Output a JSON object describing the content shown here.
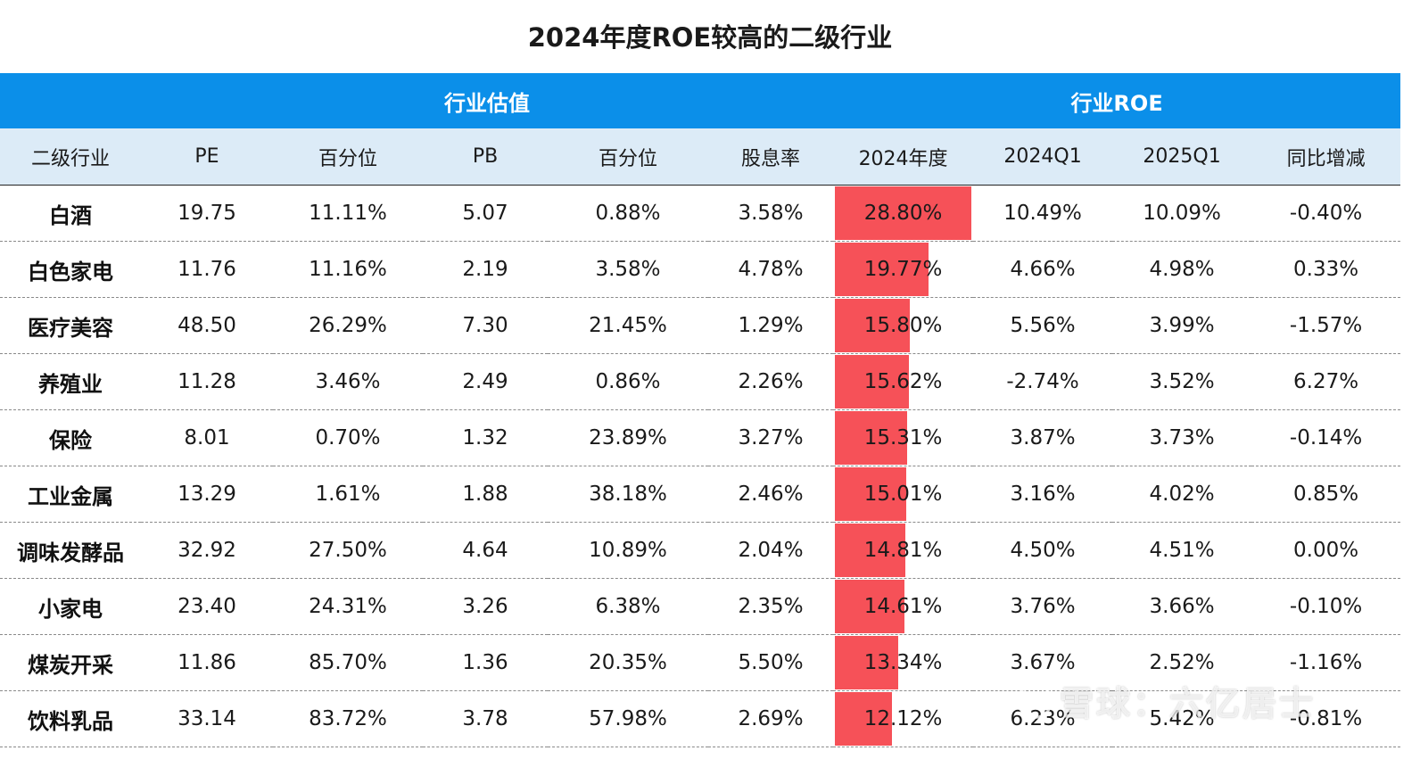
{
  "title": "2024年度ROE较高的二级行业",
  "group_headers": {
    "blank": "",
    "valuation": "行业估值",
    "roe": "行业ROE"
  },
  "columns": [
    "二级行业",
    "PE",
    "百分位",
    "PB",
    "百分位",
    "股息率",
    "2024年度",
    "2024Q1",
    "2025Q1",
    "同比增减"
  ],
  "rows": [
    {
      "industry": "白酒",
      "pe": "19.75",
      "pe_pct": "11.11%",
      "pb": "5.07",
      "pb_pct": "0.88%",
      "dividend": "3.58%",
      "roe_2024": "28.80%",
      "roe_2024_value": 28.8,
      "q1_2024": "10.49%",
      "q1_2025": "10.09%",
      "yoy": "-0.40%"
    },
    {
      "industry": "白色家电",
      "pe": "11.76",
      "pe_pct": "11.16%",
      "pb": "2.19",
      "pb_pct": "3.58%",
      "dividend": "4.78%",
      "roe_2024": "19.77%",
      "roe_2024_value": 19.77,
      "q1_2024": "4.66%",
      "q1_2025": "4.98%",
      "yoy": "0.33%"
    },
    {
      "industry": "医疗美容",
      "pe": "48.50",
      "pe_pct": "26.29%",
      "pb": "7.30",
      "pb_pct": "21.45%",
      "dividend": "1.29%",
      "roe_2024": "15.80%",
      "roe_2024_value": 15.8,
      "q1_2024": "5.56%",
      "q1_2025": "3.99%",
      "yoy": "-1.57%"
    },
    {
      "industry": "养殖业",
      "pe": "11.28",
      "pe_pct": "3.46%",
      "pb": "2.49",
      "pb_pct": "0.86%",
      "dividend": "2.26%",
      "roe_2024": "15.62%",
      "roe_2024_value": 15.62,
      "q1_2024": "-2.74%",
      "q1_2025": "3.52%",
      "yoy": "6.27%"
    },
    {
      "industry": "保险",
      "pe": "8.01",
      "pe_pct": "0.70%",
      "pb": "1.32",
      "pb_pct": "23.89%",
      "dividend": "3.27%",
      "roe_2024": "15.31%",
      "roe_2024_value": 15.31,
      "q1_2024": "3.87%",
      "q1_2025": "3.73%",
      "yoy": "-0.14%"
    },
    {
      "industry": "工业金属",
      "pe": "13.29",
      "pe_pct": "1.61%",
      "pb": "1.88",
      "pb_pct": "38.18%",
      "dividend": "2.46%",
      "roe_2024": "15.01%",
      "roe_2024_value": 15.01,
      "q1_2024": "3.16%",
      "q1_2025": "4.02%",
      "yoy": "0.85%"
    },
    {
      "industry": "调味发酵品",
      "pe": "32.92",
      "pe_pct": "27.50%",
      "pb": "4.64",
      "pb_pct": "10.89%",
      "dividend": "2.04%",
      "roe_2024": "14.81%",
      "roe_2024_value": 14.81,
      "q1_2024": "4.50%",
      "q1_2025": "4.51%",
      "yoy": "0.00%"
    },
    {
      "industry": "小家电",
      "pe": "23.40",
      "pe_pct": "24.31%",
      "pb": "3.26",
      "pb_pct": "6.38%",
      "dividend": "2.35%",
      "roe_2024": "14.61%",
      "roe_2024_value": 14.61,
      "q1_2024": "3.76%",
      "q1_2025": "3.66%",
      "yoy": "-0.10%"
    },
    {
      "industry": "煤炭开采",
      "pe": "11.86",
      "pe_pct": "85.70%",
      "pb": "1.36",
      "pb_pct": "20.35%",
      "dividend": "5.50%",
      "roe_2024": "13.34%",
      "roe_2024_value": 13.34,
      "q1_2024": "3.67%",
      "q1_2025": "2.52%",
      "yoy": "-1.16%"
    },
    {
      "industry": "饮料乳品",
      "pe": "33.14",
      "pe_pct": "83.72%",
      "pb": "3.78",
      "pb_pct": "57.98%",
      "dividend": "2.69%",
      "roe_2024": "12.12%",
      "roe_2024_value": 12.12,
      "q1_2024": "6.23%",
      "q1_2025": "5.42%",
      "yoy": "-0.81%"
    }
  ],
  "roe_bar_max": 28.8,
  "colors": {
    "header_blue": "#0b8fe9",
    "subheader_bg": "#dcebf7",
    "roe_bar": "#f65158"
  },
  "watermark": {
    "logo_icon": "xueqiu-logo-icon",
    "text": "雪球：六亿居士"
  }
}
